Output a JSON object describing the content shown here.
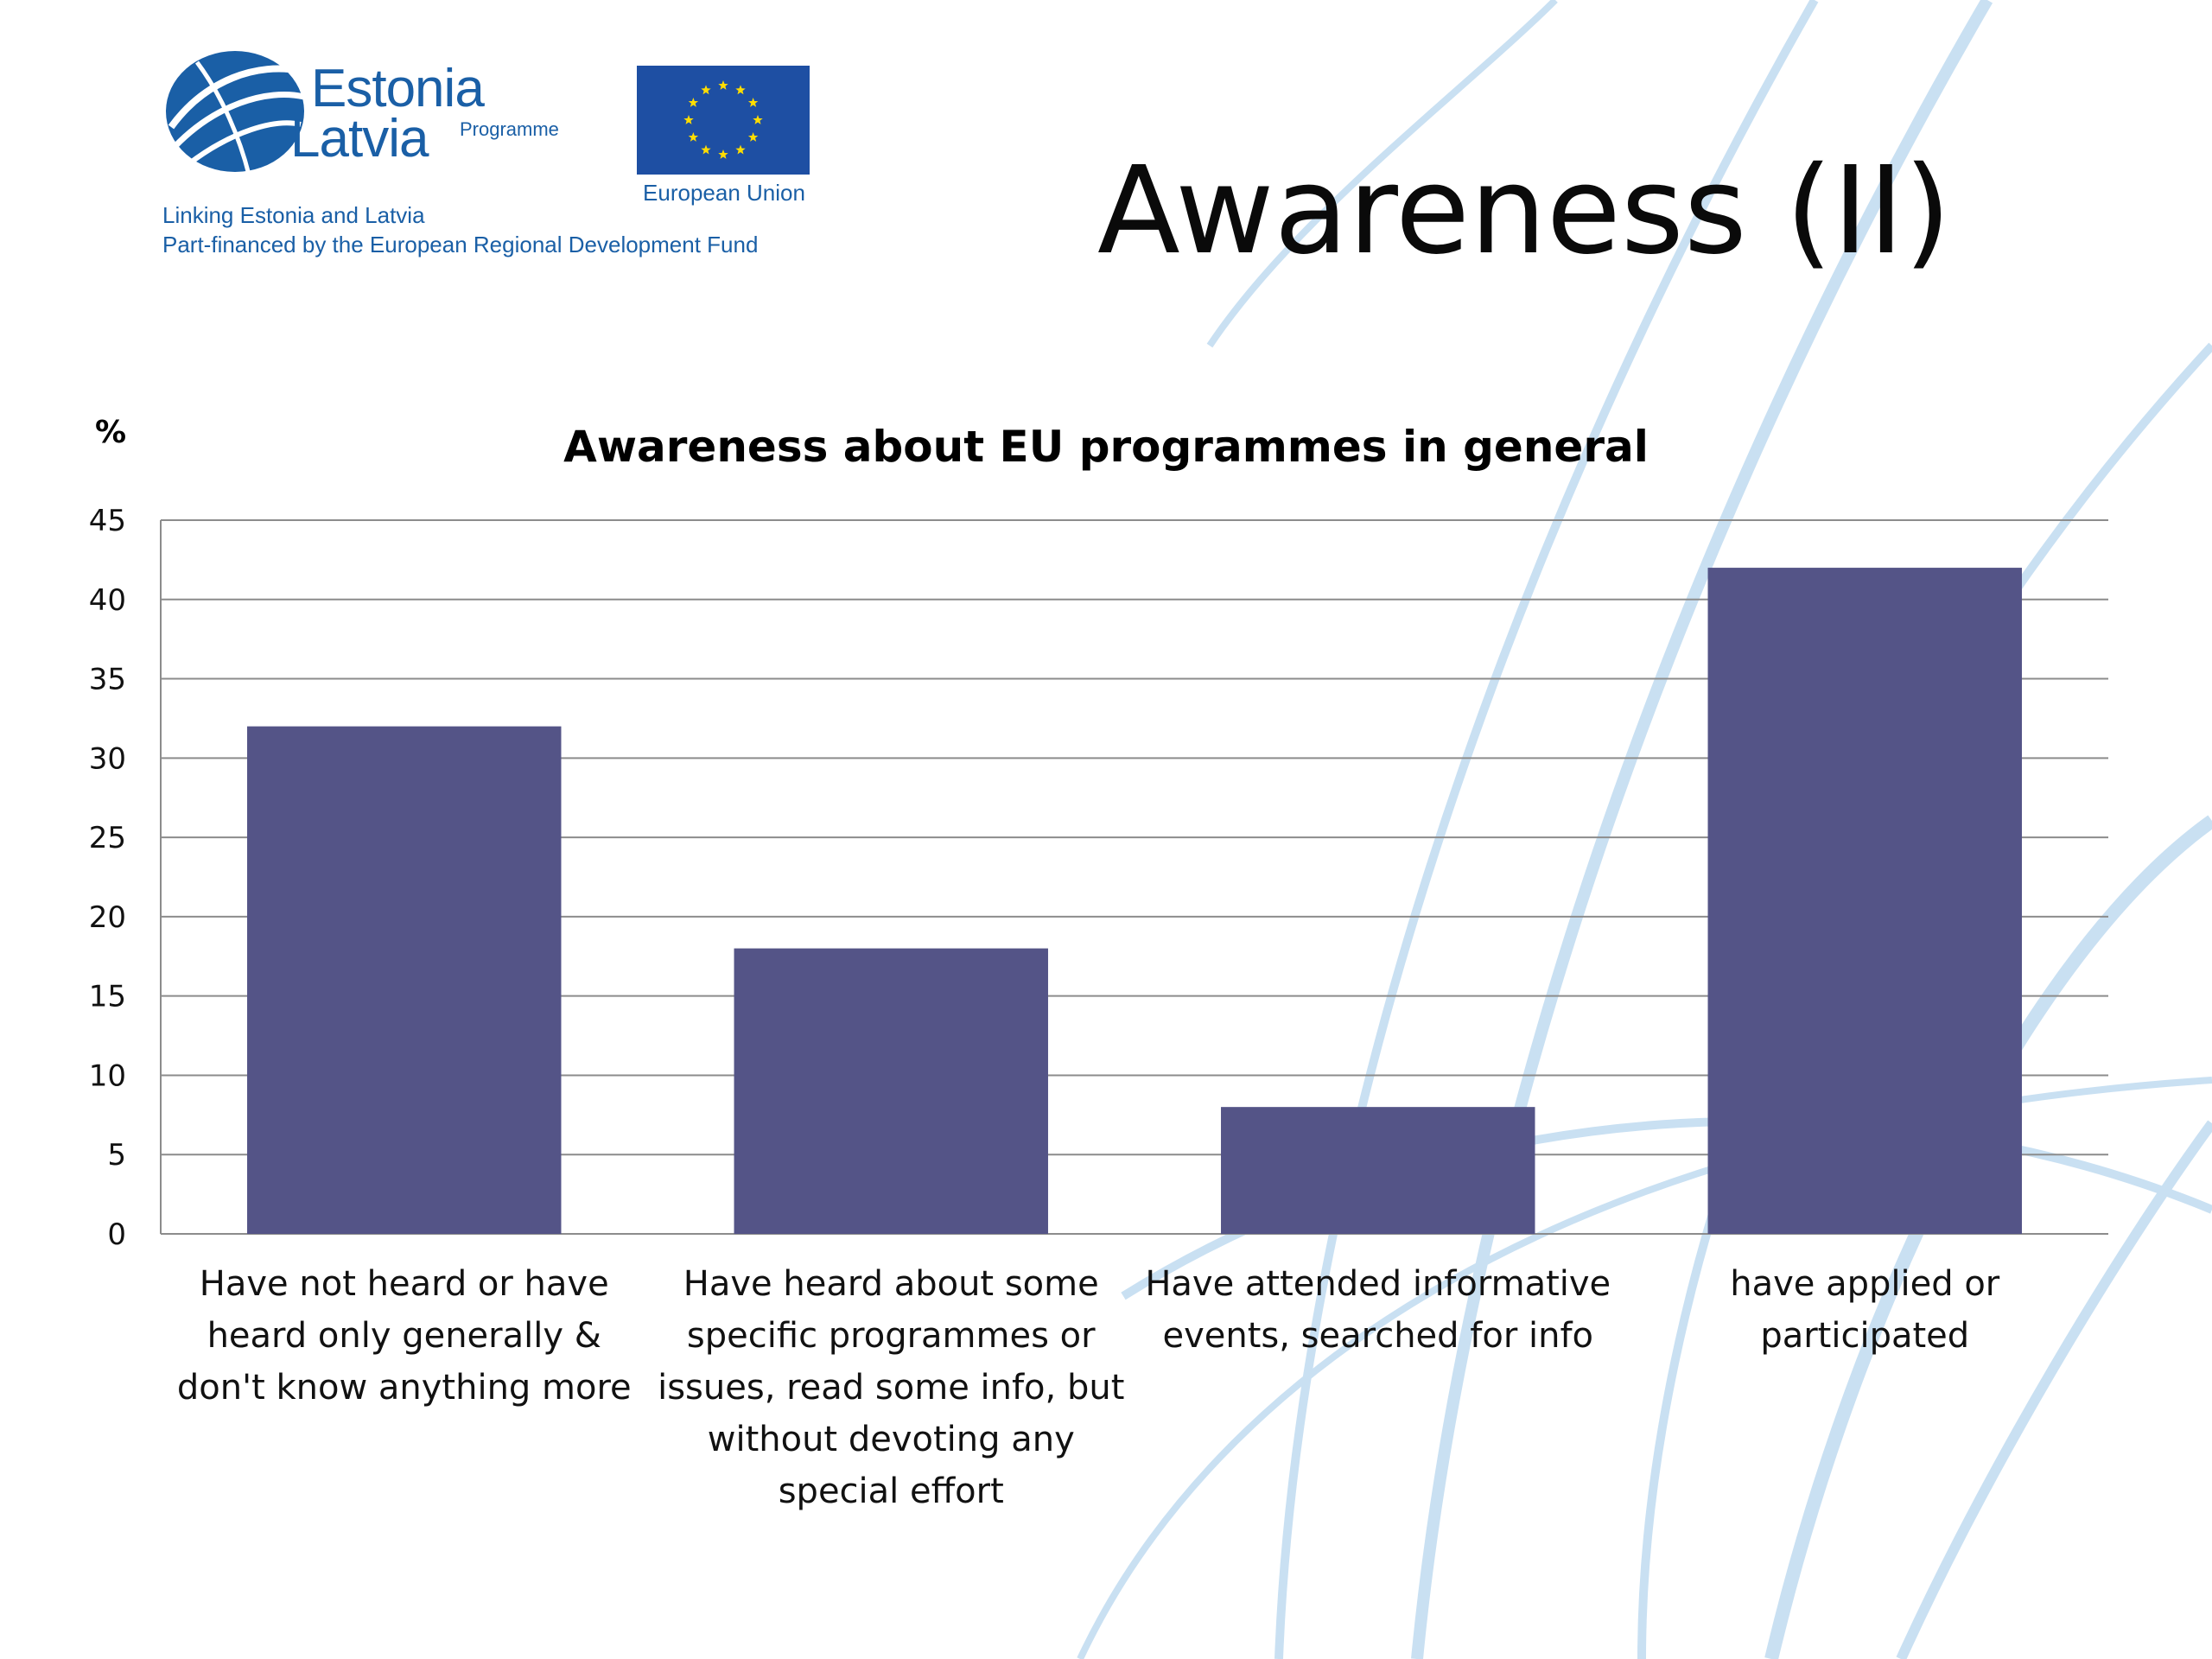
{
  "slide": {
    "title": "Awareness (II)"
  },
  "logo": {
    "name_line1": "Estonia",
    "name_line2": "Latvia",
    "programme": "Programme",
    "tagline1": "Linking Estonia and Latvia",
    "tagline2": "Part-financed by the European Regional Development Fund",
    "eu_label": "European Union",
    "brand_color": "#1a5fa6",
    "flag_color": "#1e4fa3",
    "star_color": "#ffdd00"
  },
  "chart_data": {
    "type": "bar",
    "title": "Awareness about EU programmes in general",
    "ylabel": "%",
    "xlabel": "",
    "ylim": [
      0,
      45
    ],
    "yticks": [
      0,
      5,
      10,
      15,
      20,
      25,
      30,
      35,
      40,
      45
    ],
    "grid": true,
    "legend": "none",
    "bar_color": "#545487",
    "categories": [
      "Have not heard or have heard only generally & don't know anything more",
      "Have heard about some specific programmes or issues, read some info, but without devoting any special effort",
      "Have attended informative events, searched for info",
      "have applied or participated"
    ],
    "category_lines": [
      [
        "Have not heard or have",
        "heard only generally &",
        "don't know anything more"
      ],
      [
        "Have heard about some",
        "specific programmes or",
        "issues, read some info, but",
        "without devoting any",
        "special effort"
      ],
      [
        "Have attended informative",
        "events, searched for info"
      ],
      [
        "have applied or",
        "participated"
      ]
    ],
    "values": [
      32,
      18,
      8,
      42
    ]
  }
}
